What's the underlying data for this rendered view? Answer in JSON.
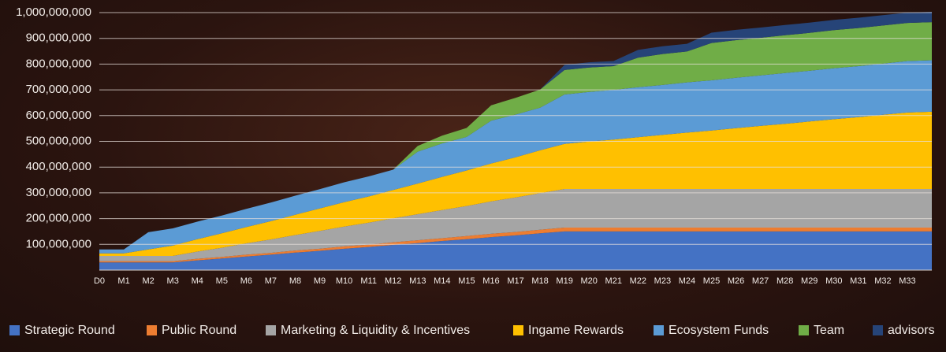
{
  "chart_data": {
    "type": "stacked_area",
    "categories": [
      "D0",
      "M1",
      "M2",
      "M3",
      "M4",
      "M5",
      "M6",
      "M7",
      "M8",
      "M9",
      "M10",
      "M11",
      "M12",
      "M13",
      "M14",
      "M15",
      "M16",
      "M17",
      "M18",
      "M19",
      "M20",
      "M21",
      "M22",
      "M23",
      "M24",
      "M25",
      "M26",
      "M27",
      "M28",
      "M29",
      "M30",
      "M31",
      "M32",
      "M33",
      null
    ],
    "ylim": [
      0,
      1000000000
    ],
    "yticks": [
      {
        "value": 100000000,
        "label": "100,000,000"
      },
      {
        "value": 200000000,
        "label": "200,000,000"
      },
      {
        "value": 300000000,
        "label": "300,000,000"
      },
      {
        "value": 400000000,
        "label": "400,000,000"
      },
      {
        "value": 500000000,
        "label": "500,000,000"
      },
      {
        "value": 600000000,
        "label": "600,000,000"
      },
      {
        "value": 700000000,
        "label": "700,000,000"
      },
      {
        "value": 800000000,
        "label": "800,000,000"
      },
      {
        "value": 900000000,
        "label": "900,000,000"
      },
      {
        "value": 1000000000,
        "label": "1,000,000,000"
      }
    ],
    "grid": true,
    "legend": "bottom",
    "series": [
      {
        "name": "Strategic Round",
        "color": "#4472c4",
        "values": [
          30000000,
          30000000,
          30000000,
          30000000,
          38000000,
          45000000,
          53000000,
          60000000,
          68000000,
          75000000,
          83000000,
          90000000,
          98000000,
          105000000,
          113000000,
          120000000,
          128000000,
          135000000,
          143000000,
          150000000,
          150000000,
          150000000,
          150000000,
          150000000,
          150000000,
          150000000,
          150000000,
          150000000,
          150000000,
          150000000,
          150000000,
          150000000,
          150000000,
          150000000,
          150000000
        ]
      },
      {
        "name": "Public Round",
        "color": "#ed7d31",
        "values": [
          5000000,
          5000000,
          5000000,
          5000000,
          6000000,
          6000000,
          7000000,
          7000000,
          8000000,
          8000000,
          9000000,
          9000000,
          10000000,
          11000000,
          11000000,
          12000000,
          13000000,
          13000000,
          14000000,
          15000000,
          15000000,
          15000000,
          15000000,
          15000000,
          15000000,
          15000000,
          15000000,
          15000000,
          15000000,
          15000000,
          15000000,
          15000000,
          15000000,
          15000000,
          15000000
        ]
      },
      {
        "name": "Marketing & Liquidity & Incentives",
        "color": "#a5a5a5",
        "values": [
          20000000,
          20000000,
          20000000,
          20000000,
          28000000,
          36000000,
          44000000,
          52000000,
          60000000,
          69000000,
          77000000,
          85000000,
          93000000,
          101000000,
          109000000,
          117000000,
          126000000,
          134000000,
          142000000,
          150000000,
          150000000,
          150000000,
          150000000,
          150000000,
          150000000,
          150000000,
          150000000,
          150000000,
          150000000,
          150000000,
          150000000,
          150000000,
          150000000,
          150000000,
          150000000
        ]
      },
      {
        "name": "Ingame Rewards",
        "color": "#ffc000",
        "values": [
          10000000,
          10000000,
          25000000,
          40000000,
          48000000,
          56000000,
          63000000,
          71000000,
          79000000,
          87000000,
          95000000,
          102000000,
          110000000,
          119000000,
          129000000,
          138000000,
          147000000,
          156000000,
          166000000,
          175000000,
          184000000,
          192000000,
          201000000,
          210000000,
          219000000,
          227000000,
          236000000,
          245000000,
          253000000,
          262000000,
          271000000,
          279000000,
          288000000,
          297000000,
          300000000
        ]
      },
      {
        "name": "Ecosystem Funds",
        "color": "#5b9bd5",
        "values": [
          15000000,
          15000000,
          67000000,
          67000000,
          68000000,
          69000000,
          71000000,
          72000000,
          74000000,
          75000000,
          77000000,
          78000000,
          79000000,
          124000000,
          130000000,
          130000000,
          166000000,
          166000000,
          166000000,
          192000000,
          193000000,
          193000000,
          194000000,
          194000000,
          195000000,
          195000000,
          196000000,
          196000000,
          197000000,
          197000000,
          198000000,
          198000000,
          199000000,
          200000000,
          200000000
        ]
      },
      {
        "name": "Team",
        "color": "#70ad47",
        "values": [
          0,
          0,
          0,
          0,
          0,
          0,
          0,
          0,
          0,
          0,
          0,
          0,
          0,
          22000000,
          30000000,
          35000000,
          60000000,
          65000000,
          70000000,
          95000000,
          95000000,
          92000000,
          115000000,
          120000000,
          120000000,
          145000000,
          146000000,
          146000000,
          147000000,
          147000000,
          148000000,
          148000000,
          148000000,
          148000000,
          148000000
        ]
      },
      {
        "name": "advisors",
        "color": "#264478",
        "values": [
          0,
          0,
          0,
          0,
          0,
          0,
          0,
          0,
          0,
          0,
          0,
          0,
          0,
          0,
          0,
          0,
          0,
          0,
          0,
          20000000,
          20000000,
          20000000,
          30000000,
          30000000,
          30000000,
          40000000,
          40000000,
          40000000,
          40000000,
          40000000,
          40000000,
          40000000,
          40000000,
          40000000,
          40000000
        ]
      }
    ]
  }
}
